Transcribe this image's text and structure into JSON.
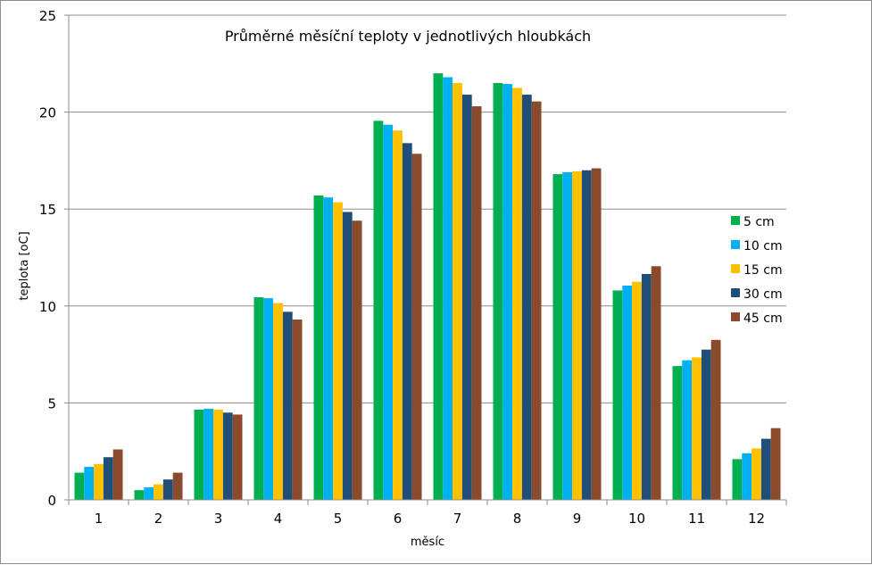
{
  "chart_data": {
    "type": "bar",
    "title": "Průměrné měsíční teploty v jednotlivých hloubkách",
    "xlabel": "měsíc",
    "ylabel": "teplota [oC]",
    "ylim": [
      0,
      25
    ],
    "yticks": [
      "0",
      "5",
      "10",
      "15",
      "20",
      "25"
    ],
    "grid": true,
    "legend_position": "right",
    "categories": [
      "1",
      "2",
      "3",
      "4",
      "5",
      "6",
      "7",
      "8",
      "9",
      "10",
      "11",
      "12"
    ],
    "series": [
      {
        "name": "5 cm",
        "color": "#00b050",
        "values": [
          1.4,
          0.5,
          4.65,
          10.45,
          15.7,
          19.55,
          22.0,
          21.5,
          16.8,
          10.8,
          6.9,
          2.1
        ]
      },
      {
        "name": "10 cm",
        "color": "#00b0f0",
        "values": [
          1.7,
          0.65,
          4.7,
          10.4,
          15.6,
          19.35,
          21.8,
          21.45,
          16.9,
          11.05,
          7.2,
          2.4
        ]
      },
      {
        "name": "15 cm",
        "color": "#ffc000",
        "values": [
          1.85,
          0.8,
          4.65,
          10.15,
          15.35,
          19.05,
          21.5,
          21.25,
          16.95,
          11.25,
          7.35,
          2.65
        ]
      },
      {
        "name": "30 cm",
        "color": "#1f4e79",
        "values": [
          2.2,
          1.05,
          4.5,
          9.7,
          14.85,
          18.4,
          20.9,
          20.9,
          17.0,
          11.65,
          7.75,
          3.15
        ]
      },
      {
        "name": "45 cm",
        "color": "#8b4a2b",
        "values": [
          2.6,
          1.4,
          4.4,
          9.3,
          14.4,
          17.85,
          20.3,
          20.55,
          17.1,
          12.05,
          8.25,
          3.7
        ]
      }
    ]
  }
}
